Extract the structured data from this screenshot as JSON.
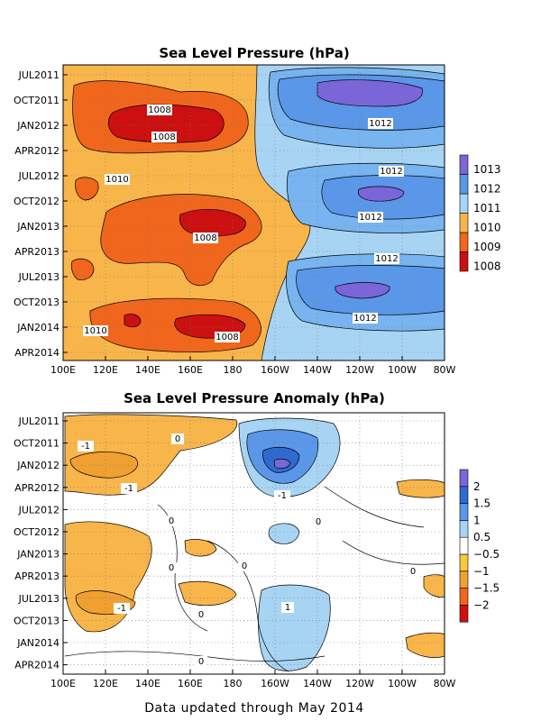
{
  "footer": "Data updated through May 2014",
  "chart_data": [
    {
      "type": "heatmap",
      "title": "Sea Level Pressure (hPa)",
      "x_ticks": [
        "100E",
        "120E",
        "140E",
        "160E",
        "180",
        "160W",
        "140W",
        "120W",
        "100W",
        "80W"
      ],
      "y_ticks": [
        "JUL2011",
        "OCT2011",
        "JAN2012",
        "APR2012",
        "JUL2012",
        "OCT2012",
        "JAN2013",
        "APR2013",
        "JUL2013",
        "OCT2013",
        "JAN2014",
        "APR2014"
      ],
      "colorbar": {
        "levels": [
          "1008",
          "1009",
          "1010",
          "1011",
          "1012",
          "1013"
        ],
        "colors": [
          "#cc1010",
          "#f0661c",
          "#f8b54a",
          "#a8d4f4",
          "#5a97e8",
          "#7a66d8"
        ]
      },
      "contour_labels": [
        "1008",
        "1008",
        "1010",
        "1012",
        "1012",
        "1012",
        "1008",
        "1012",
        "1012",
        "1010",
        "1008"
      ],
      "grid": true
    },
    {
      "type": "heatmap",
      "title": "Sea Level Pressure Anomaly (hPa)",
      "x_ticks": [
        "100E",
        "120E",
        "140E",
        "160E",
        "180",
        "160W",
        "140W",
        "120W",
        "100W",
        "80W"
      ],
      "y_ticks": [
        "JUL2011",
        "OCT2011",
        "JAN2012",
        "APR2012",
        "JUL2012",
        "OCT2012",
        "JAN2013",
        "APR2013",
        "JUL2013",
        "OCT2013",
        "JAN2014",
        "APR2014"
      ],
      "colorbar": {
        "levels": [
          "2",
          "1.5",
          "1",
          "0.5",
          "−0.5",
          "−1",
          "−1.5",
          "−2"
        ],
        "colors": [
          "#d00f0f",
          "#f0661c",
          "#f0a030",
          "#f8c840",
          "#ffffff",
          "#a8d4f4",
          "#5a97e8",
          "#2e6ad0",
          "#7a66d8"
        ]
      },
      "contour_labels": [
        "-1",
        "0",
        "-1",
        "-1",
        "0",
        "0",
        "0",
        "0",
        "0",
        "-1",
        "0",
        "1",
        "0"
      ],
      "grid": true
    }
  ]
}
